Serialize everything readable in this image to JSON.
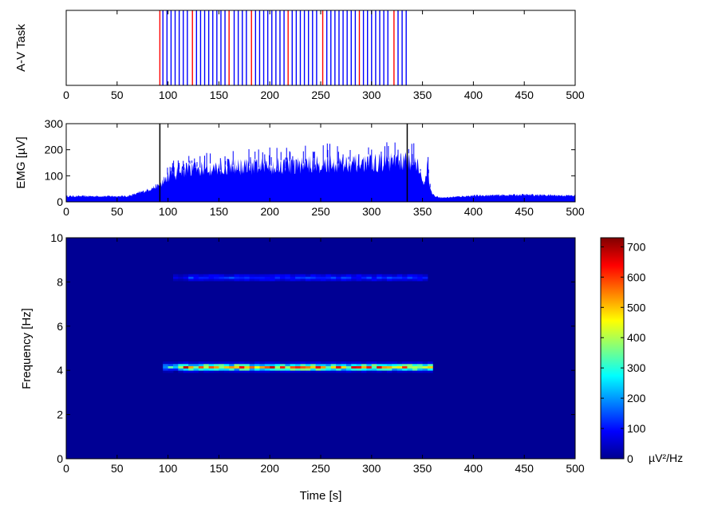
{
  "chart_data": [
    {
      "type": "event-raster",
      "ylabel": "A-V Task",
      "xlim": [
        0,
        500
      ],
      "xticks": [
        0,
        50,
        100,
        150,
        200,
        250,
        300,
        350,
        400,
        450,
        500
      ],
      "grid": false,
      "series": [
        {
          "color": "#ff0000",
          "x": [
            92,
            124,
            160,
            182,
            218,
            252,
            288,
            322
          ]
        },
        {
          "color": "#0000ff",
          "x": [
            95,
            99,
            103,
            107,
            111,
            115,
            119,
            128,
            132,
            136,
            140,
            144,
            148,
            152,
            156,
            165,
            169,
            173,
            177,
            186,
            190,
            194,
            198,
            202,
            206,
            210,
            214,
            222,
            226,
            230,
            234,
            238,
            242,
            246,
            256,
            260,
            264,
            268,
            272,
            276,
            280,
            284,
            292,
            296,
            300,
            304,
            308,
            312,
            316,
            326,
            330,
            334
          ]
        }
      ]
    },
    {
      "type": "area",
      "ylabel": "EMG [µV]",
      "xlim": [
        0,
        500
      ],
      "ylim": [
        0,
        300
      ],
      "xticks": [
        0,
        50,
        100,
        150,
        200,
        250,
        300,
        350,
        400,
        450,
        500
      ],
      "yticks": [
        0,
        100,
        200,
        300
      ],
      "color": "#0000ff",
      "envelope": {
        "x": [
          0,
          60,
          70,
          80,
          92,
          100,
          110,
          120,
          130,
          150,
          175,
          200,
          225,
          250,
          275,
          300,
          320,
          335,
          345,
          350,
          355,
          358,
          362,
          370,
          400,
          450,
          500
        ],
        "y": [
          20,
          20,
          30,
          42,
          60,
          85,
          100,
          108,
          112,
          118,
          120,
          122,
          125,
          128,
          130,
          133,
          135,
          140,
          135,
          60,
          115,
          40,
          20,
          15,
          22,
          25,
          22
        ]
      },
      "markers": [
        92,
        335
      ]
    },
    {
      "type": "heatmap",
      "xlabel": "Time [s]",
      "ylabel": "Frequency [Hz]",
      "xlim": [
        0,
        500
      ],
      "ylim": [
        0,
        10
      ],
      "xticks": [
        0,
        50,
        100,
        150,
        200,
        250,
        300,
        350,
        400,
        450,
        500
      ],
      "yticks": [
        0,
        2,
        4,
        6,
        8,
        10
      ],
      "grid": false,
      "colormap": "jet",
      "clim": [
        0,
        730
      ],
      "colorbar": {
        "ticks": [
          0,
          100,
          200,
          300,
          400,
          500,
          600,
          700
        ],
        "unit": "µV²/Hz"
      },
      "background": 15,
      "bands": [
        {
          "freq": 4.15,
          "t_start": 95,
          "t_end": 358,
          "level": 580
        },
        {
          "freq": 8.2,
          "t_start": 105,
          "t_end": 355,
          "level": 120
        }
      ],
      "time_bin": 5
    }
  ]
}
